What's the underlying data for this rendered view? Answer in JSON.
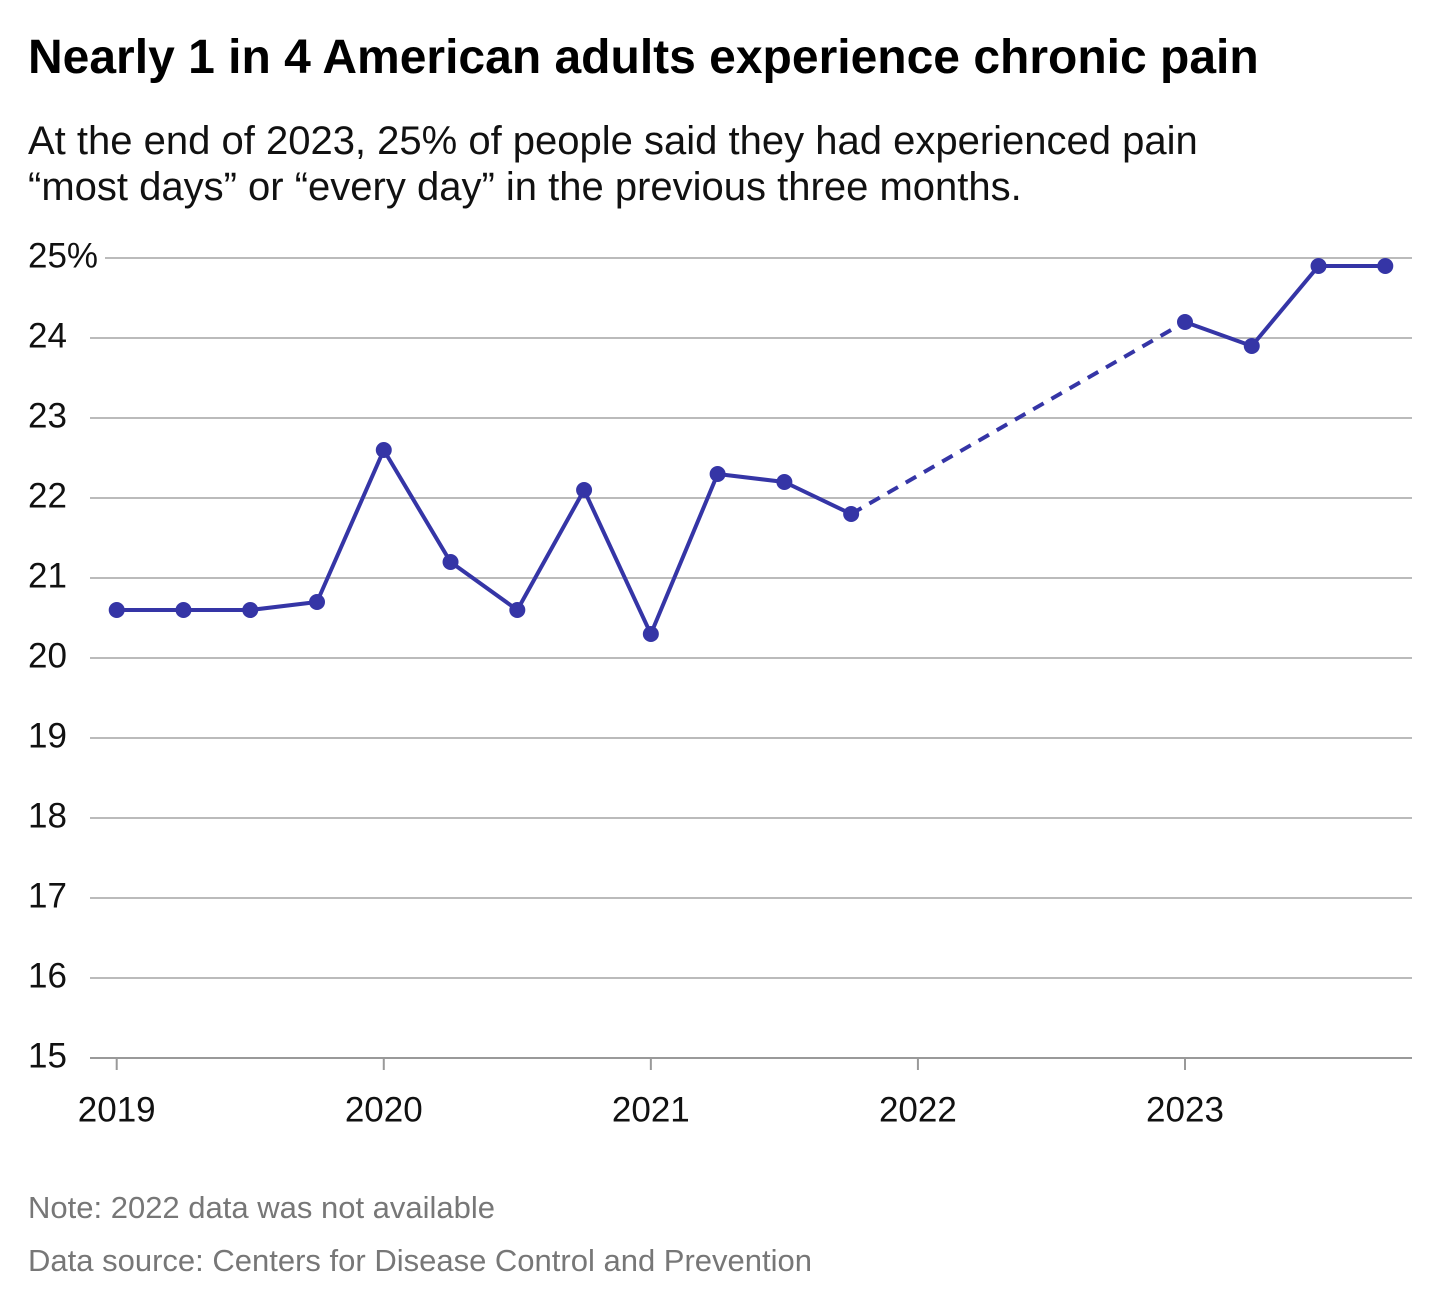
{
  "chart_data": {
    "type": "line",
    "title": "Nearly 1 in 4 American adults experience chronic pain",
    "subtitle": "At the end of 2023, 25% of people said they had experienced pain “most days” or “every day” in the previous three months.",
    "notes": [
      "Note: 2022 data was not available",
      "Data source: Centers for Disease Control and Prevention"
    ],
    "x": [
      2019,
      2019.25,
      2019.5,
      2019.75,
      2020,
      2020.25,
      2020.5,
      2020.75,
      2021,
      2021.25,
      2021.5,
      2021.75,
      2022,
      2023,
      2023.25,
      2023.5,
      2023.75
    ],
    "values": [
      20.6,
      20.6,
      20.6,
      20.7,
      22.6,
      21.2,
      20.6,
      22.1,
      20.3,
      22.3,
      22.2,
      21.8,
      null,
      24.2,
      23.9,
      24.9,
      24.9
    ],
    "color": "#3535a6",
    "gap_line": "dashed",
    "xlim": [
      2018.9,
      2023.85
    ],
    "xticks": [
      2019,
      2020,
      2021,
      2022,
      2023
    ],
    "ylim": [
      15,
      25
    ],
    "yticks": [
      15,
      16,
      17,
      18,
      19,
      20,
      21,
      22,
      23,
      24,
      {
        "value": 25,
        "label": "25%"
      }
    ],
    "grid": true
  }
}
